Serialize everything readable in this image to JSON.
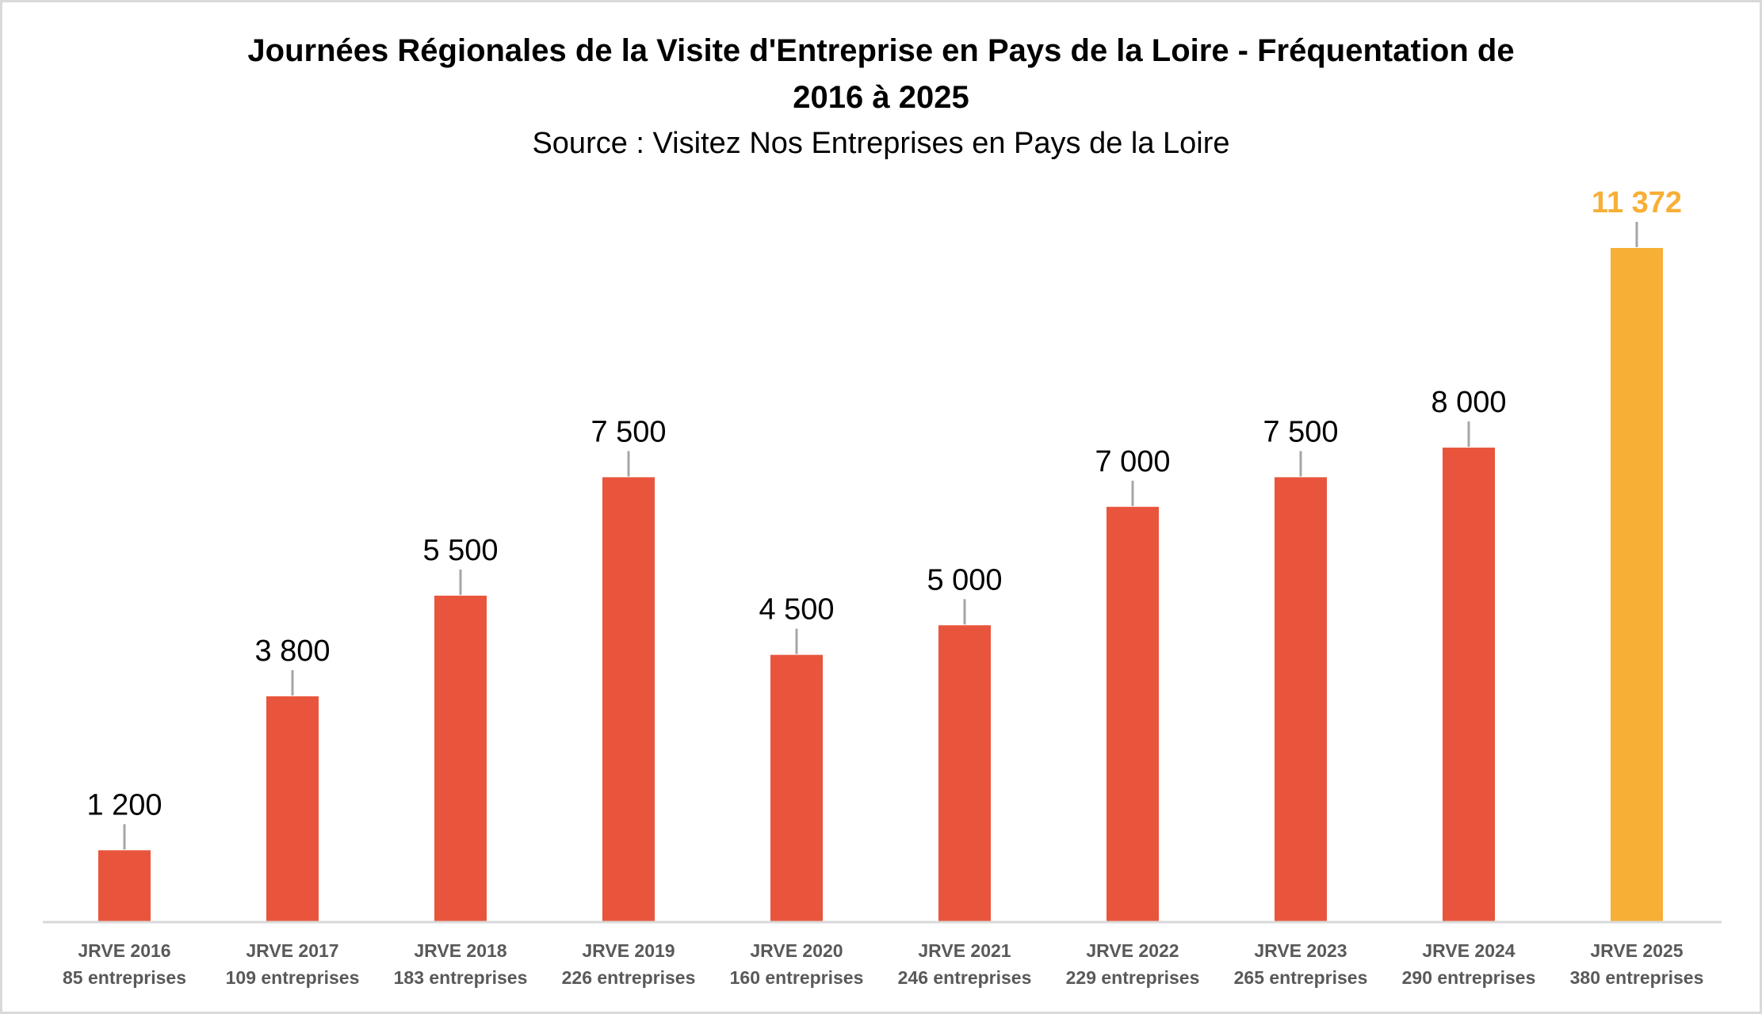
{
  "chart_data": {
    "type": "bar",
    "title": "Journées Régionales de la Visite d'Entreprise en Pays de la Loire - Fréquentation de",
    "title_line2": "2016 à 2025",
    "subtitle": "Source : Visitez Nos Entreprises en Pays de la Loire",
    "categories": [
      "JRVE 2016",
      "JRVE 2017",
      "JRVE 2018",
      "JRVE 2019",
      "JRVE 2020",
      "JRVE 2021",
      "JRVE 2022",
      "JRVE 2023",
      "JRVE 2024",
      "JRVE 2025"
    ],
    "category_sublabels": [
      "85 entreprises",
      "109 entreprises",
      "183 entreprises",
      "226 entreprises",
      "160 entreprises",
      "246 entreprises",
      "229 entreprises",
      "265 entreprises",
      "290 entreprises",
      "380 entreprises"
    ],
    "values": [
      1200,
      3800,
      5500,
      7500,
      4500,
      5000,
      7000,
      7500,
      8000,
      11372
    ],
    "data_labels": [
      "1 200",
      "3 800",
      "5 500",
      "7 500",
      "4 500",
      "5 000",
      "7 000",
      "7 500",
      "8 000",
      "11 372"
    ],
    "colors": [
      "#E9553C",
      "#E9553C",
      "#E9553C",
      "#E9553C",
      "#E9553C",
      "#E9553C",
      "#E9553C",
      "#E9553C",
      "#E9553C",
      "#F7AF36"
    ],
    "label_colors": [
      "#000000",
      "#000000",
      "#000000",
      "#000000",
      "#000000",
      "#000000",
      "#000000",
      "#000000",
      "#000000",
      "#F7AF36"
    ],
    "xlabel": "",
    "ylabel": "",
    "ylim": [
      0,
      11372
    ],
    "grid": false,
    "legend": "none"
  }
}
